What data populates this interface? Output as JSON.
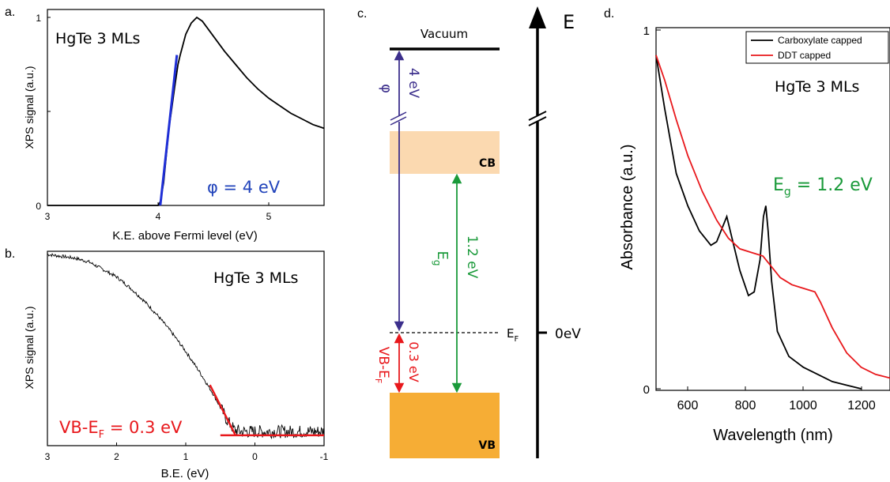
{
  "panels": {
    "a": "a.",
    "b": "b.",
    "c": "c.",
    "d": "d."
  },
  "colors": {
    "black": "#000000",
    "blue": "#1f2fd6",
    "blue_text": "#2244bb",
    "purple": "#3c2f8c",
    "red": "#e8181c",
    "green": "#1a9a3a",
    "cb_fill": "#fbd9b0",
    "vb_fill": "#f6ad35"
  },
  "chart_data": [
    {
      "id": "a",
      "type": "line",
      "annotation": "HgTe 3 MLs",
      "xlabel": "K.E. above Fermi level (eV)",
      "ylabel": "XPS signal (a.u.)",
      "xlim": [
        3,
        5.5
      ],
      "ylim": [
        0,
        1
      ],
      "xticks": [
        "3",
        "4",
        "5"
      ],
      "yticks": [
        "0",
        "1"
      ],
      "grid": false,
      "series": [
        {
          "x": [
            3.0,
            3.5,
            4.0,
            4.02,
            4.05,
            4.08,
            4.1,
            4.12,
            4.15,
            4.18,
            4.2,
            4.25,
            4.3,
            4.35,
            4.4,
            4.5,
            4.6,
            4.7,
            4.8,
            4.9,
            5.0,
            5.1,
            5.2,
            5.3,
            5.4,
            5.5
          ],
          "values": [
            0,
            0,
            0,
            0.02,
            0.12,
            0.3,
            0.42,
            0.5,
            0.63,
            0.75,
            0.8,
            0.91,
            0.97,
            1.0,
            0.98,
            0.9,
            0.82,
            0.75,
            0.68,
            0.62,
            0.57,
            0.53,
            0.49,
            0.46,
            0.43,
            0.41
          ]
        }
      ],
      "fit_line": {
        "x": [
          4.02,
          4.17
        ],
        "values": [
          0.0,
          0.8
        ]
      },
      "fit_label": "φ = 4 eV"
    },
    {
      "id": "b",
      "type": "line",
      "annotation": "HgTe 3 MLs",
      "xlabel": "B.E. (eV)",
      "ylabel": "XPS signal (a.u.)",
      "xlim": [
        3,
        -1
      ],
      "xticks": [
        "3",
        "2",
        "1",
        "0",
        "-1"
      ],
      "grid": false,
      "series": [
        {
          "x": [
            3.0,
            2.8,
            2.6,
            2.4,
            2.2,
            2.0,
            1.8,
            1.6,
            1.4,
            1.2,
            1.0,
            0.8,
            0.6,
            0.5,
            0.4,
            0.3,
            0.2,
            0.0,
            -0.2,
            -0.4,
            -0.6,
            -0.8,
            -1.0
          ],
          "values": [
            1.0,
            0.99,
            0.98,
            0.96,
            0.92,
            0.88,
            0.82,
            0.75,
            0.67,
            0.58,
            0.48,
            0.37,
            0.25,
            0.18,
            0.11,
            0.06,
            0.05,
            0.05,
            0.05,
            0.05,
            0.05,
            0.05,
            0.05
          ]
        }
      ],
      "fit_lines": [
        {
          "x": [
            0.65,
            0.28
          ],
          "values": [
            0.3,
            0.03
          ]
        },
        {
          "x": [
            0.5,
            -1.0
          ],
          "values": [
            0.03,
            0.03
          ]
        }
      ],
      "fit_label": "VB-E",
      "fit_label_sub": "F",
      "fit_label_value": " = 0.3 eV"
    },
    {
      "id": "d",
      "type": "line",
      "annotation": "HgTe 3 MLs",
      "xlabel": "Wavelength (nm)",
      "ylabel": "Absorbance (a.u.)",
      "xlim": [
        490,
        1300
      ],
      "ylim": [
        0,
        1
      ],
      "xticks": [
        "600",
        "800",
        "1000",
        "1200"
      ],
      "yticks": [
        "0",
        "1"
      ],
      "legend_position": "top-right",
      "grid": false,
      "series": [
        {
          "name": "Carboxylate capped",
          "x": [
            490,
            520,
            560,
            600,
            640,
            680,
            700,
            720,
            735,
            750,
            780,
            810,
            830,
            850,
            862,
            870,
            878,
            890,
            910,
            950,
            1000,
            1050,
            1100,
            1150,
            1200
          ],
          "values": [
            0.93,
            0.78,
            0.6,
            0.51,
            0.44,
            0.4,
            0.41,
            0.45,
            0.48,
            0.43,
            0.33,
            0.26,
            0.27,
            0.36,
            0.48,
            0.51,
            0.44,
            0.3,
            0.16,
            0.09,
            0.06,
            0.04,
            0.02,
            0.01,
            0.0
          ]
        },
        {
          "name": "DDT capped",
          "x": [
            490,
            520,
            560,
            600,
            650,
            700,
            740,
            780,
            820,
            860,
            880,
            920,
            960,
            1000,
            1040,
            1060,
            1100,
            1150,
            1200,
            1250,
            1300
          ],
          "values": [
            0.93,
            0.86,
            0.75,
            0.65,
            0.55,
            0.47,
            0.42,
            0.39,
            0.38,
            0.37,
            0.35,
            0.31,
            0.29,
            0.28,
            0.27,
            0.24,
            0.17,
            0.1,
            0.06,
            0.04,
            0.03
          ]
        }
      ],
      "gap_label": "E",
      "gap_label_sub": "g",
      "gap_label_value": " = 1.2 eV"
    }
  ],
  "diagram": {
    "vacuum_label": "Vacuum",
    "cb_label": "CB",
    "vb_label": "VB",
    "phi_label": "φ",
    "phi_value": "4 eV",
    "gap_symbol": "E",
    "gap_symbol_sub": "g",
    "gap_value": "1.2 eV",
    "vbef_label": "VB-E",
    "vbef_label_sub": "F",
    "vbef_value": "0.3 eV",
    "ef_label": "E",
    "ef_label_sub": "F",
    "zero_label": "0eV",
    "energy_axis_label": "E"
  }
}
